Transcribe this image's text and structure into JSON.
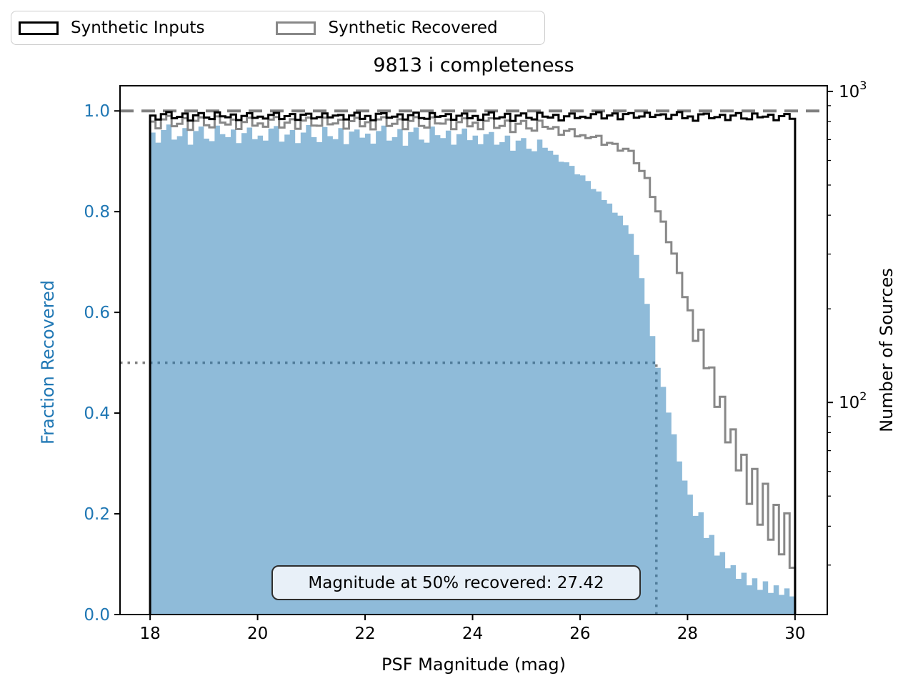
{
  "figure": {
    "title": "9813 i completeness",
    "legend": {
      "items": [
        {
          "label": "Synthetic Inputs",
          "swatch_color": "#000000"
        },
        {
          "label": "Synthetic Recovered",
          "swatch_color": "#888888"
        }
      ]
    },
    "annotation": {
      "text": "Magnitude at 50% recovered: 27.42"
    }
  },
  "chart_data": {
    "type": "bar",
    "subtype": "step-histogram-with-twin-log-axis",
    "title": "9813 i completeness",
    "xlabel": "PSF Magnitude (mag)",
    "ylabel_left": "Fraction Recovered",
    "ylabel_right": "Number of Sources",
    "legend": [
      "Synthetic Inputs",
      "Synthetic Recovered"
    ],
    "xlim": [
      17.44,
      30.6
    ],
    "ylim_left": [
      0.0,
      1.05
    ],
    "ylim_right": [
      20.8,
      1043
    ],
    "right_axis_scale": "log",
    "x_ticks": [
      18,
      20,
      22,
      24,
      26,
      28,
      30
    ],
    "y_ticks_left": [
      0.0,
      0.2,
      0.4,
      0.6,
      0.8,
      1.0
    ],
    "y_ticks_right": [
      {
        "value": 100,
        "label_base": "10",
        "label_exp": "2"
      },
      {
        "value": 1000,
        "label_base": "10",
        "label_exp": "3"
      }
    ],
    "y_minor_ticks_right": [
      30,
      40,
      50,
      60,
      70,
      80,
      90,
      200,
      300,
      400,
      500,
      600,
      700,
      800,
      900
    ],
    "bin_start": 18.0,
    "bin_width": 0.1,
    "n_bins": 120,
    "fraction_recovered": [
      0.957,
      0.937,
      0.962,
      0.973,
      0.943,
      0.95,
      0.966,
      0.933,
      0.96,
      0.969,
      0.945,
      0.94,
      0.971,
      0.954,
      0.948,
      0.963,
      0.936,
      0.956,
      0.967,
      0.944,
      0.951,
      0.941,
      0.965,
      0.97,
      0.939,
      0.953,
      0.962,
      0.936,
      0.957,
      0.972,
      0.948,
      0.938,
      0.968,
      0.95,
      0.944,
      0.966,
      0.934,
      0.959,
      0.963,
      0.947,
      0.955,
      0.935,
      0.96,
      0.971,
      0.941,
      0.948,
      0.964,
      0.931,
      0.958,
      0.967,
      0.943,
      0.937,
      0.969,
      0.952,
      0.946,
      0.961,
      0.933,
      0.954,
      0.965,
      0.942,
      0.951,
      0.934,
      0.954,
      0.958,
      0.933,
      0.938,
      0.951,
      0.921,
      0.941,
      0.946,
      0.925,
      0.92,
      0.943,
      0.927,
      0.921,
      0.913,
      0.899,
      0.898,
      0.891,
      0.874,
      0.872,
      0.861,
      0.845,
      0.84,
      0.823,
      0.816,
      0.798,
      0.792,
      0.773,
      0.756,
      0.714,
      0.668,
      0.617,
      0.553,
      0.49,
      0.452,
      0.401,
      0.358,
      0.304,
      0.266,
      0.238,
      0.196,
      0.203,
      0.152,
      0.158,
      0.117,
      0.124,
      0.092,
      0.098,
      0.071,
      0.083,
      0.058,
      0.072,
      0.049,
      0.066,
      0.043,
      0.058,
      0.039,
      0.052,
      0.036
    ],
    "synthetic_inputs_counts": [
      836,
      812,
      845,
      858,
      820,
      828,
      849,
      806,
      838,
      852,
      824,
      815,
      856,
      832,
      826,
      843,
      809,
      834,
      851,
      822,
      830,
      818,
      841,
      853,
      815,
      833,
      846,
      810,
      842,
      848,
      819,
      827,
      850,
      825,
      836,
      840,
      813,
      837,
      854,
      816,
      834,
      808,
      847,
      851,
      823,
      830,
      844,
      812,
      839,
      855,
      821,
      817,
      852,
      829,
      833,
      845,
      811,
      835,
      849,
      820,
      834,
      810,
      843,
      856,
      818,
      826,
      847,
      804,
      836,
      850,
      822,
      813,
      854,
      830,
      824,
      841,
      807,
      832,
      849,
      821,
      829,
      822,
      845,
      857,
      819,
      837,
      850,
      814,
      846,
      852,
      823,
      831,
      854,
      828,
      840,
      844,
      817,
      841,
      858,
      820,
      831,
      805,
      844,
      848,
      820,
      827,
      841,
      809,
      836,
      852,
      818,
      814,
      849,
      826,
      830,
      842,
      808,
      833,
      846,
      817
    ],
    "synthetic_recovered_rule": "recovered_counts[i] = synthetic_inputs_counts[i] * fraction_recovered[i]",
    "reference": {
      "dashed_hline_left": 1.0,
      "dotted_hline_left": 0.5,
      "dotted_vline_x": 27.42,
      "mag_at_50pct_recovered": 27.42
    },
    "colors": {
      "fraction_fill": "#1f77b4",
      "fraction_fill_alpha": 0.5,
      "inputs_line": "#000000",
      "recovered_line": "#888888",
      "reference_gray": "#808080",
      "left_axis_text": "#1f77b4"
    },
    "grid": false,
    "legend_position": "upper-left-outside"
  }
}
